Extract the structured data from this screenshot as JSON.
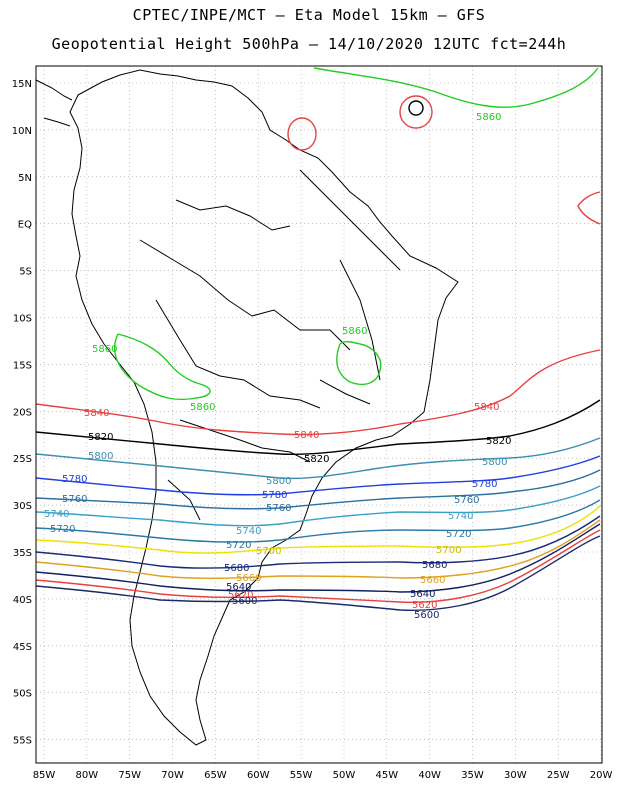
{
  "header": {
    "line1": "CPTEC/INPE/MCT –  Eta Model 15km – GFS",
    "line2": "Geopotential Height 500hPa – 14/10/2020 12UTC fct=244h"
  },
  "axes": {
    "lat_labels": [
      "15N",
      "10N",
      "5N",
      "EQ",
      "5S",
      "10S",
      "15S",
      "20S",
      "25S",
      "30S",
      "35S",
      "40S",
      "45S",
      "50S",
      "55S"
    ],
    "lon_labels": [
      "85W",
      "80W",
      "75W",
      "70W",
      "65W",
      "60W",
      "55W",
      "50W",
      "45W",
      "40W",
      "35W",
      "30W",
      "25W",
      "20W"
    ]
  },
  "contour_labels": {
    "c5860_top": "5860",
    "c5860_brazil": "5860",
    "c5860_andes": "5860",
    "c5860_bolivia": "5860",
    "c5840_w": "5840",
    "c5840_c": "5840",
    "c5840_e": "5840",
    "c5820_w": "5820",
    "c5820_c": "5820",
    "c5820_e": "5820",
    "c5800_w": "5800",
    "c5800_c": "5800",
    "c5800_e": "5800",
    "c5780_w": "5780",
    "c5780_c": "5780",
    "c5780_e": "5780",
    "c5760_w": "5760",
    "c5760_c": "5760",
    "c5760_e": "5760",
    "c5740_w": "5740",
    "c5740_c": "5740",
    "c5740_e": "5740",
    "c5720_w": "5720",
    "c5720_c": "5720",
    "c5720_e": "5720",
    "c5700_c": "5700",
    "c5700_e": "5700",
    "c5680_c": "5680",
    "c5680_e": "5680",
    "c5660_c": "5660",
    "c5660_e": "5660",
    "c5640_c": "5640",
    "c5640_e": "5640",
    "c5620_c": "5620",
    "c5620_e": "5620",
    "c5600_c": "5600",
    "c5600_e": "5600"
  },
  "colors": {
    "c5860": "#22cc22",
    "c5840": "#e84040",
    "c5820": "#000000",
    "c5800": "#3a8fb0",
    "c5780": "#1f3fe0",
    "c5760": "#2a6fa0",
    "c5740": "#3aa0c8",
    "c5720": "#2a7aa8",
    "c5700": "#f0e000",
    "c5680": "#1a2a7a",
    "c5660": "#e0a020",
    "c5640": "#102060",
    "c5620": "#e84040",
    "c5600": "#1a2a6a",
    "coast": "#000000",
    "grid": "#a0a0a0"
  }
}
